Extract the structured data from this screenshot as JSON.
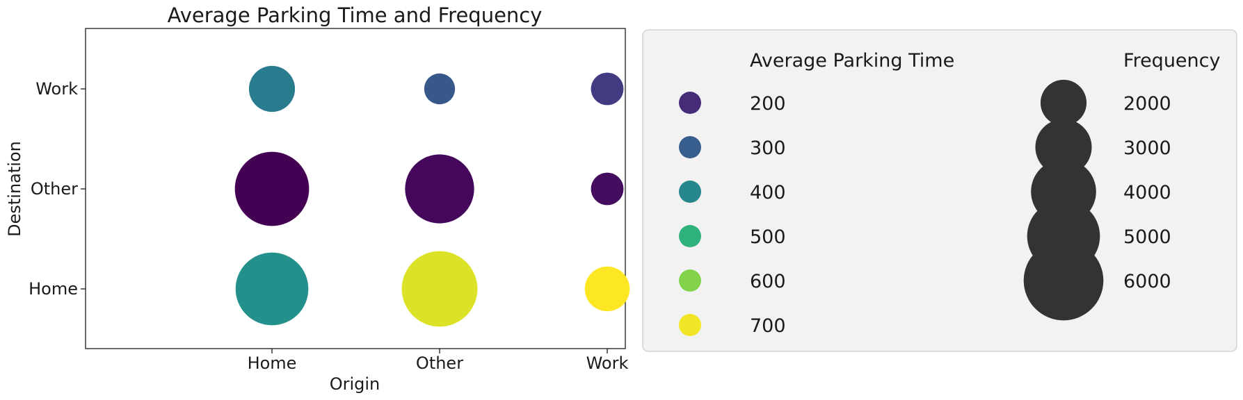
{
  "chart_data": {
    "type": "scatter",
    "title": "Average Parking Time and Frequency",
    "xlabel": "Origin",
    "ylabel": "Destination",
    "x_categories": [
      "Home",
      "Other",
      "Work"
    ],
    "y_categories": [
      "Home",
      "Other",
      "Work"
    ],
    "points": [
      {
        "origin": "Home",
        "destination": "Home",
        "avg_parking_time": 420,
        "frequency": 5000
      },
      {
        "origin": "Home",
        "destination": "Other",
        "avg_parking_time": 130,
        "frequency": 5200
      },
      {
        "origin": "Home",
        "destination": "Work",
        "avg_parking_time": 370,
        "frequency": 2000
      },
      {
        "origin": "Other",
        "destination": "Home",
        "avg_parking_time": 680,
        "frequency": 5400
      },
      {
        "origin": "Other",
        "destination": "Other",
        "avg_parking_time": 140,
        "frequency": 4500
      },
      {
        "origin": "Other",
        "destination": "Work",
        "avg_parking_time": 290,
        "frequency": 900
      },
      {
        "origin": "Work",
        "destination": "Home",
        "avg_parking_time": 710,
        "frequency": 1900
      },
      {
        "origin": "Work",
        "destination": "Other",
        "avg_parking_time": 150,
        "frequency": 1000
      },
      {
        "origin": "Work",
        "destination": "Work",
        "avg_parking_time": 230,
        "frequency": 1000
      }
    ],
    "color_scale": {
      "colormap": "viridis",
      "min": 130,
      "max": 710
    },
    "legend": {
      "placement": "right",
      "color_title": "Average Parking Time",
      "color_entries": [
        "200",
        "300",
        "400",
        "500",
        "600",
        "700"
      ],
      "color_values": [
        200,
        300,
        400,
        500,
        600,
        700
      ],
      "size_title": "Frequency",
      "size_entries": [
        "2000",
        "3000",
        "4000",
        "5000",
        "6000"
      ],
      "size_values": [
        2000,
        3000,
        4000,
        5000,
        6000
      ],
      "size_marker_color": "#333333"
    },
    "grid": false
  }
}
